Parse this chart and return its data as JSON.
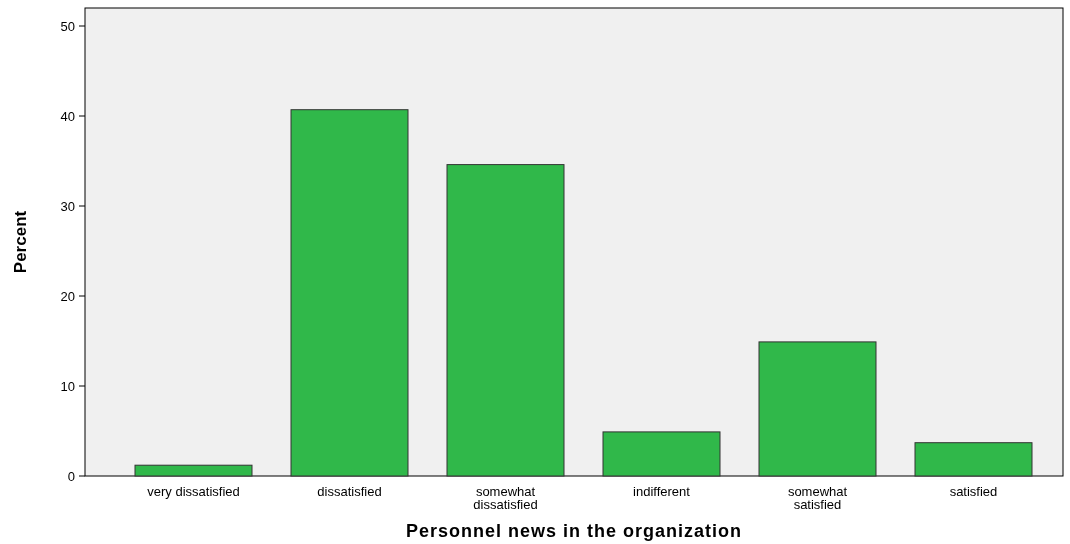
{
  "chart_data": {
    "type": "bar",
    "xlabel": "Personnel news in the organization",
    "ylabel": "Percent",
    "categories": [
      "very dissatisfied",
      "dissatisfied",
      "somewhat dissatisfied",
      "indifferent",
      "somewhat satisfied",
      "satisfied"
    ],
    "values": [
      1.2,
      40.7,
      34.6,
      4.9,
      14.9,
      3.7
    ],
    "color": "#30b84a",
    "ylim": [
      0,
      52
    ],
    "yticks": [
      0,
      10,
      20,
      30,
      40,
      50
    ]
  }
}
